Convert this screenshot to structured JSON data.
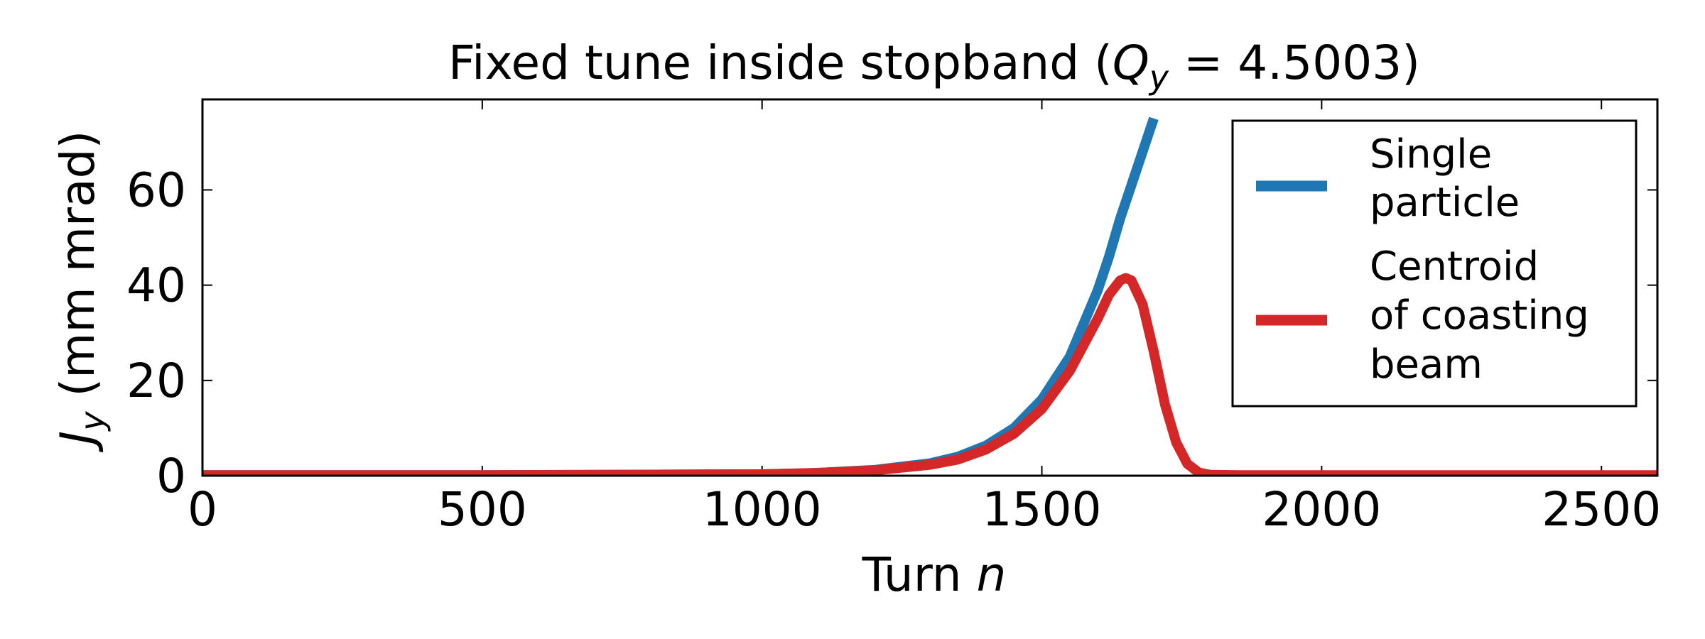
{
  "chart_data": {
    "type": "line",
    "title_main": "Fixed tune inside stopband (",
    "title_var": "Q",
    "title_sub": "y",
    "title_eq": " = 4.5003)",
    "xlabel_main": "Turn ",
    "xlabel_var": "n",
    "ylabel_var": "J",
    "ylabel_sub": "y",
    "ylabel_units": " (mm mrad)",
    "xlim": [
      0,
      2600
    ],
    "ylim": [
      0,
      79
    ],
    "xticks": [
      0,
      500,
      1000,
      1500,
      2000,
      2500
    ],
    "yticks": [
      0,
      20,
      40,
      60
    ],
    "grid": false,
    "legend_position": "top-right",
    "legend": [
      {
        "lines": [
          "Single",
          "particle"
        ],
        "color": "#1f77b4"
      },
      {
        "lines": [
          "Centroid",
          "of coasting",
          "beam"
        ],
        "color": "#d62728"
      }
    ],
    "series": [
      {
        "color": "#1f77b4",
        "x": [
          0,
          500,
          1000,
          1100,
          1200,
          1300,
          1350,
          1400,
          1450,
          1500,
          1550,
          1600,
          1620,
          1640,
          1660,
          1680,
          1700
        ],
        "y": [
          0.1,
          0.1,
          0.3,
          0.6,
          1.2,
          2.6,
          4.0,
          6.3,
          10.0,
          16.0,
          25.0,
          39.0,
          46.0,
          54.0,
          61.0,
          68.0,
          75.0
        ]
      },
      {
        "color": "#d62728",
        "x": [
          0,
          500,
          1000,
          1100,
          1200,
          1300,
          1350,
          1400,
          1450,
          1500,
          1550,
          1600,
          1620,
          1640,
          1650,
          1660,
          1680,
          1700,
          1720,
          1740,
          1760,
          1780,
          1800,
          1850,
          2000,
          2600
        ],
        "y": [
          0.1,
          0.1,
          0.3,
          0.6,
          1.1,
          2.3,
          3.4,
          5.5,
          8.8,
          14.0,
          22.0,
          33.0,
          38.0,
          41.0,
          41.5,
          41.0,
          36.0,
          26.0,
          15.0,
          7.0,
          2.5,
          0.7,
          0.2,
          0.1,
          0.1,
          0.1
        ]
      }
    ]
  }
}
